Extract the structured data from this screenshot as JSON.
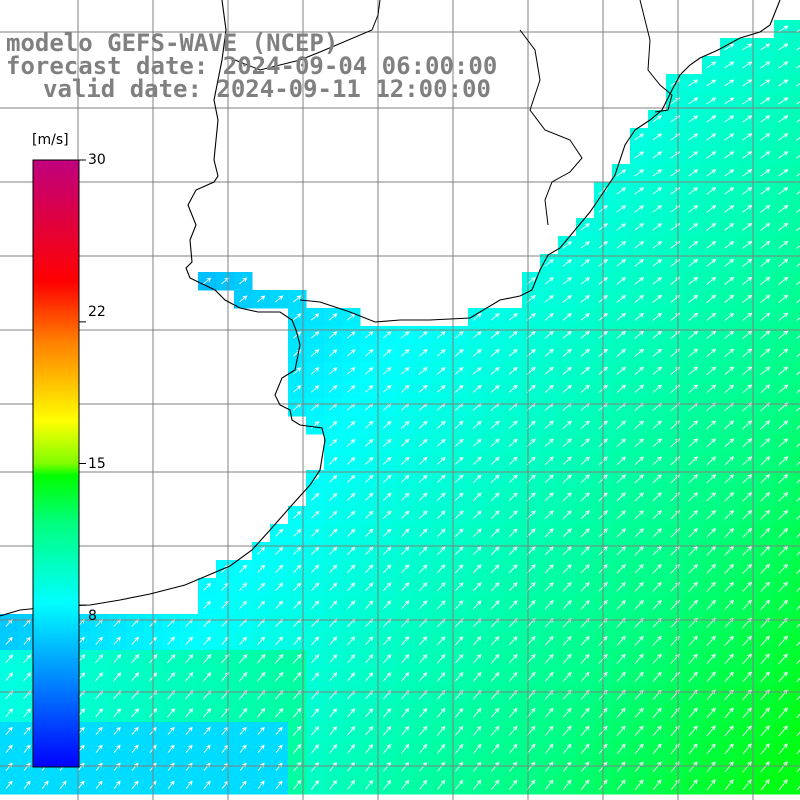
{
  "map": {
    "title_line1": "modelo GEFS-WAVE (NCEP)",
    "title_line2": "forecast date: 2024-09-04 06:00:00",
    "title_line3": "valid date: 2024-09-11 12:00:00",
    "variable_shown": "wind speed with direction arrows",
    "region": "Rio de la Plata / southern Brazil coast and adjacent South Atlantic",
    "colorbar": {
      "unit": "[m/s]",
      "min": 0,
      "max": 30,
      "ticks": [
        {
          "value": 30,
          "label": "30"
        },
        {
          "value": 22,
          "label": "22"
        },
        {
          "value": 15,
          "label": "15"
        },
        {
          "value": 8,
          "label": "8"
        }
      ],
      "colors": [
        "#0000ff",
        "#00ffff",
        "#00ff00",
        "#ffff00",
        "#ff0000",
        "#c0007f"
      ]
    },
    "field": {
      "offshore_speed_ms": [
        11,
        14
      ],
      "estuary_speed_ms": [
        6,
        9
      ],
      "arrow_direction": "blowing toward the northeast (from southwest)"
    },
    "colors": {
      "title_text": "#808080",
      "land": "#ffffff",
      "gridline": "#808080",
      "coastline": "#000000",
      "arrows": "#ffffff"
    }
  }
}
